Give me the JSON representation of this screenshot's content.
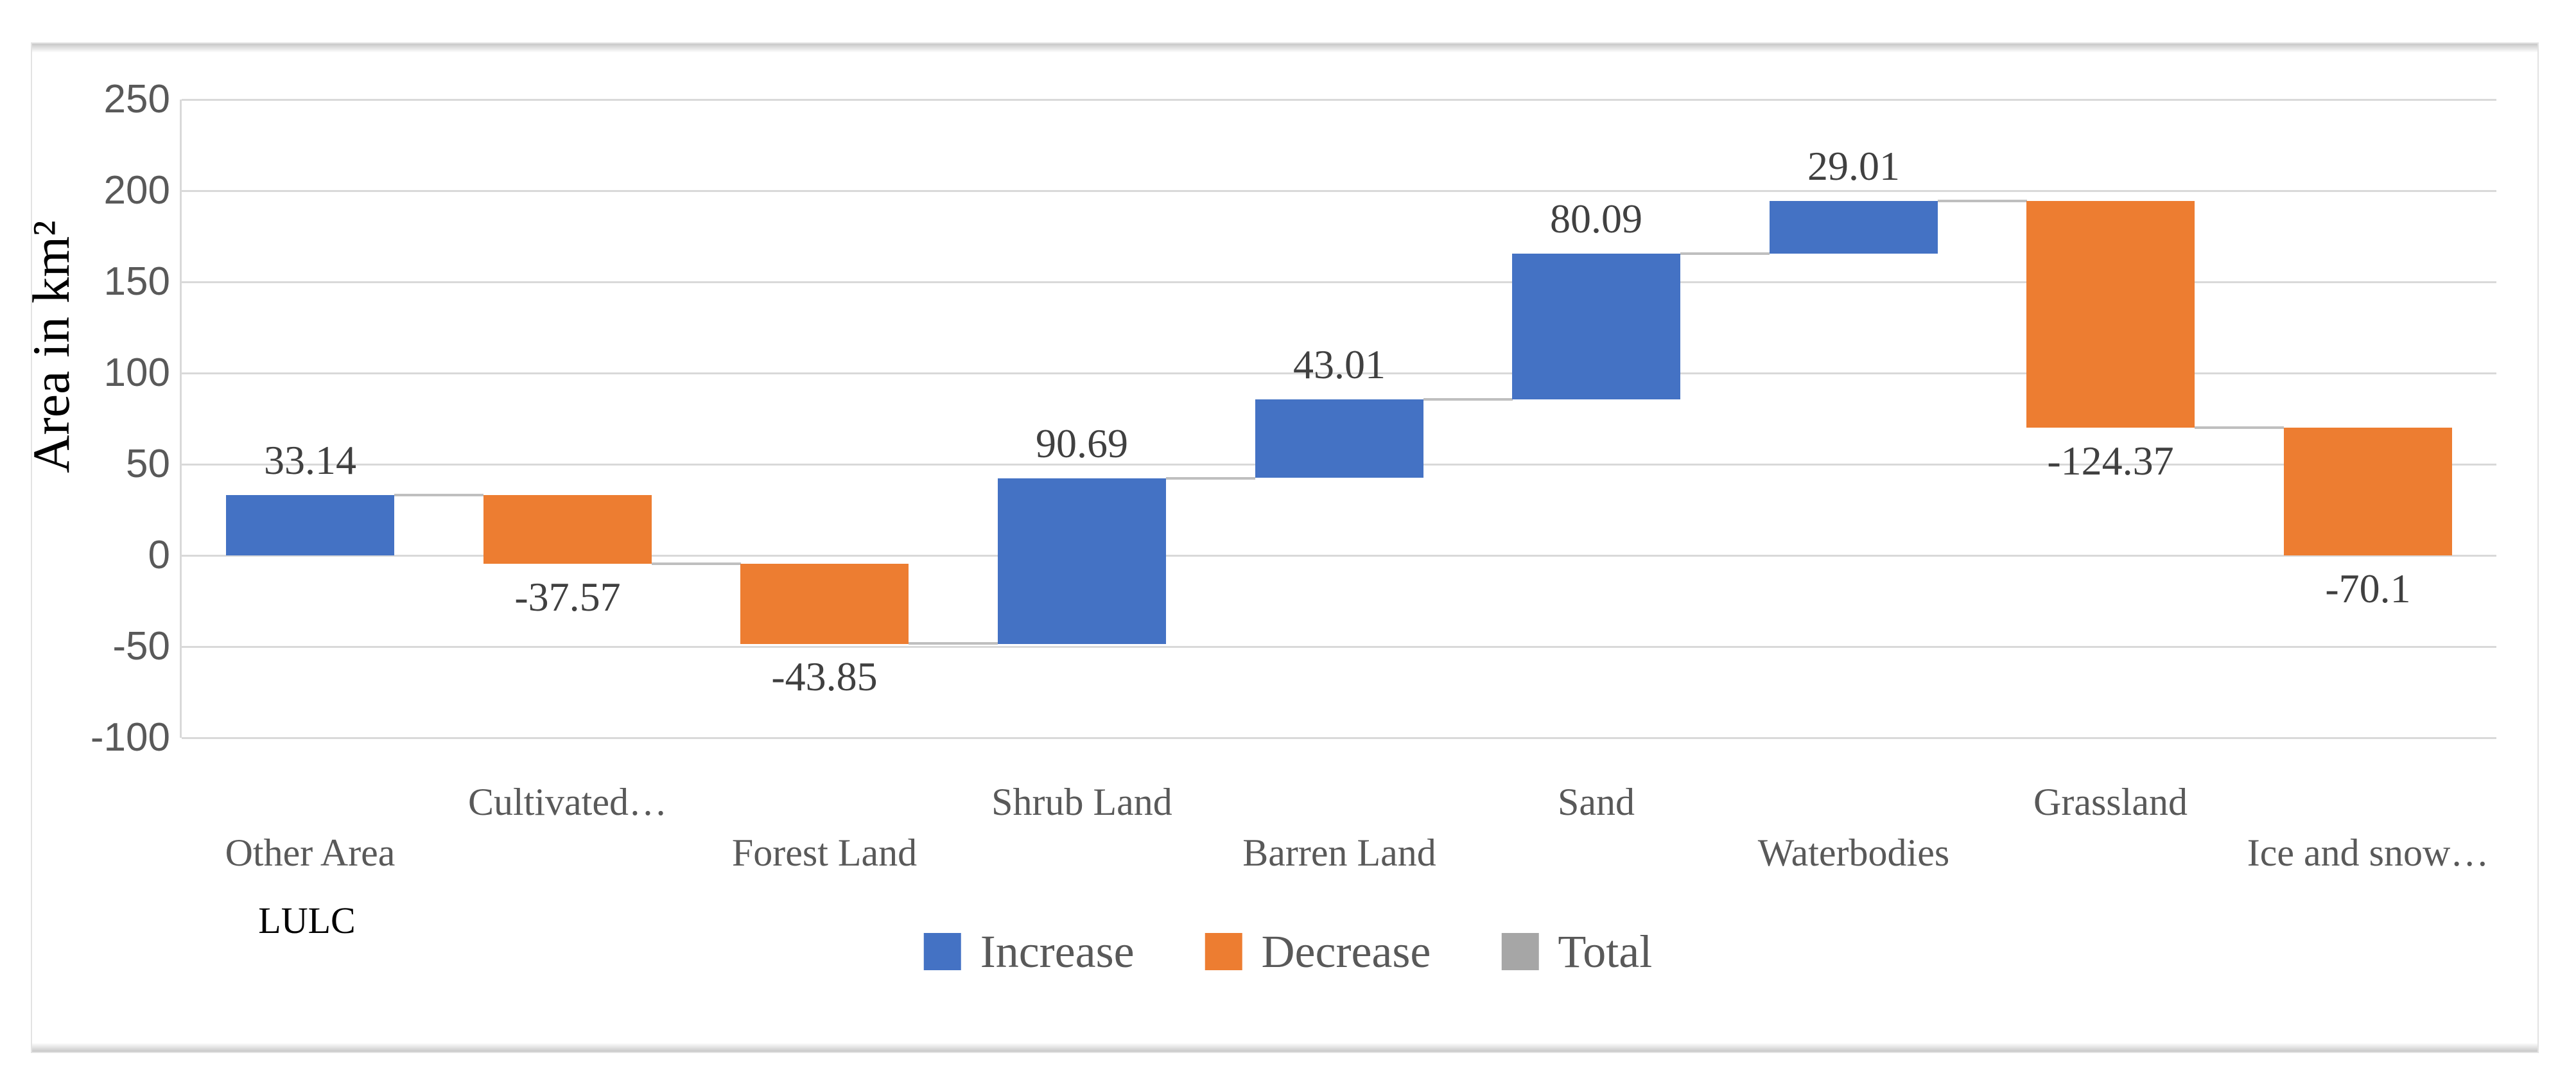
{
  "chart_data": {
    "type": "waterfall",
    "title": "",
    "categories": [
      "Other Area",
      "Cultivated…",
      "Forest Land",
      "Shrub Land",
      "Barren Land",
      "Sand",
      "Waterbodies",
      "Grassland",
      "Ice and snow…"
    ],
    "values": [
      33.14,
      -37.57,
      -43.85,
      90.69,
      43.01,
      80.09,
      29.01,
      -124.37,
      -70.1
    ],
    "data_labels": [
      "33.14",
      "-37.57",
      "-43.85",
      "90.69",
      "43.01",
      "80.09",
      "29.01",
      "-124.37",
      "-70.1"
    ],
    "xlabel": "LULC",
    "ylabel": "Area in km²",
    "y_ticks": [
      "250",
      "200",
      "150",
      "100",
      "50",
      "0",
      "-50",
      "-100"
    ],
    "ylim": [
      -100,
      250
    ],
    "grid": true,
    "legend": [
      {
        "label": "Increase",
        "color": "#4472C4"
      },
      {
        "label": "Decrease",
        "color": "#ED7D31"
      },
      {
        "label": "Total",
        "color": "#A6A6A6"
      }
    ],
    "legend_position": "bottom-center",
    "colors": {
      "increase": "#4472C4",
      "decrease": "#ED7D31",
      "total": "#A6A6A6",
      "gridline": "#D9D9D9",
      "connector": "#BFBFBF",
      "tick_text": "#595959",
      "category_text": "#595959",
      "data_label_text": "#404040",
      "legend_text": "#595959"
    }
  }
}
